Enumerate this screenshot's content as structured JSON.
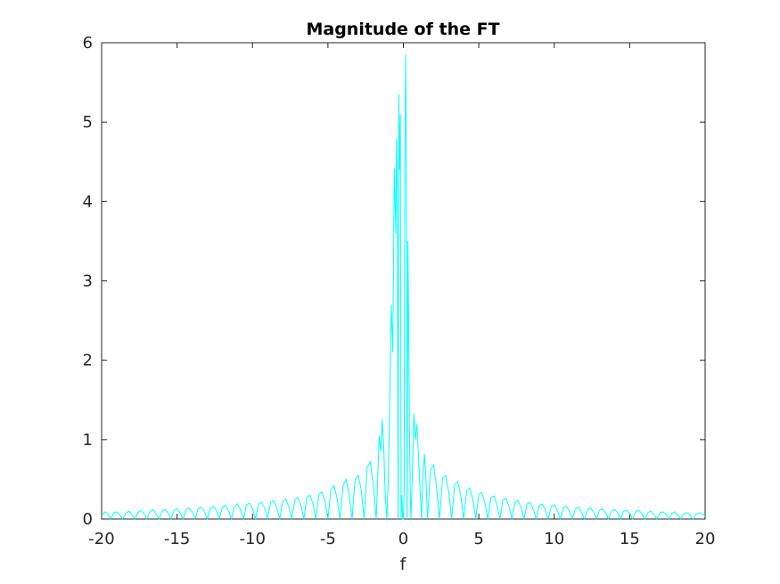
{
  "chart_data": {
    "type": "line",
    "title": "Magnitude of the FT",
    "xlabel": "f",
    "ylabel": "",
    "xlim": [
      -20,
      20
    ],
    "ylim": [
      0,
      6
    ],
    "grid": false,
    "legend": "none",
    "x_ticks": [
      "-20",
      "-15",
      "-10",
      "-5",
      "0",
      "5",
      "10",
      "15",
      "20"
    ],
    "y_ticks": [
      "0",
      "1",
      "2",
      "3",
      "4",
      "5",
      "6"
    ],
    "series": [
      {
        "color": "#00ffff",
        "x": [
          -20.0,
          -19.8,
          -19.6,
          -19.4,
          -19.2,
          -19.0,
          -18.8,
          -18.6,
          -18.4,
          -18.2,
          -18.0,
          -17.8,
          -17.6,
          -17.4,
          -17.2,
          -17.0,
          -16.8,
          -16.6,
          -16.4,
          -16.2,
          -16.0,
          -15.8,
          -15.6,
          -15.4,
          -15.2,
          -15.0,
          -14.8,
          -14.6,
          -14.4,
          -14.2,
          -14.0,
          -13.8,
          -13.6,
          -13.4,
          -13.2,
          -13.0,
          -12.8,
          -12.6,
          -12.4,
          -12.2,
          -12.0,
          -11.8,
          -11.6,
          -11.4,
          -11.2,
          -11.0,
          -10.8,
          -10.6,
          -10.4,
          -10.2,
          -10.0,
          -9.8,
          -9.6,
          -9.4,
          -9.2,
          -9.0,
          -8.8,
          -8.6,
          -8.4,
          -8.2,
          -8.0,
          -7.8,
          -7.6,
          -7.4,
          -7.2,
          -7.0,
          -6.8,
          -6.6,
          -6.4,
          -6.2,
          -6.0,
          -5.8,
          -5.6,
          -5.4,
          -5.2,
          -5.0,
          -4.8,
          -4.6,
          -4.4,
          -4.2,
          -4.0,
          -3.8,
          -3.6,
          -3.4,
          -3.2,
          -3.0,
          -2.8,
          -2.6,
          -2.4,
          -2.2,
          -2.0,
          -1.8,
          -1.6,
          -1.5,
          -1.4,
          -1.3,
          -1.2,
          -1.1,
          -1.0,
          -0.9,
          -0.8,
          -0.7,
          -0.6,
          -0.5,
          -0.45,
          -0.4,
          -0.35,
          -0.3,
          -0.25,
          -0.2,
          -0.15,
          -0.1,
          -0.05,
          0.0,
          0.05,
          0.1,
          0.15,
          0.2,
          0.25,
          0.3,
          0.35,
          0.4,
          0.45,
          0.5,
          0.55,
          0.6,
          0.7,
          0.8,
          0.9,
          1.0,
          1.1,
          1.2,
          1.3,
          1.4,
          1.5,
          1.6,
          1.8,
          2.0,
          2.2,
          2.4,
          2.6,
          2.8,
          3.0,
          3.2,
          3.4,
          3.6,
          3.8,
          4.0,
          4.2,
          4.4,
          4.6,
          4.8,
          5.0,
          5.2,
          5.4,
          5.6,
          5.8,
          6.0,
          6.2,
          6.4,
          6.6,
          6.8,
          7.0,
          7.2,
          7.4,
          7.6,
          7.8,
          8.0,
          8.2,
          8.4,
          8.6,
          8.8,
          9.0,
          9.2,
          9.4,
          9.6,
          9.8,
          10.0,
          10.2,
          10.4,
          10.6,
          10.8,
          11.0,
          11.2,
          11.4,
          11.6,
          11.8,
          12.0,
          12.2,
          12.4,
          12.6,
          12.8,
          13.0,
          13.2,
          13.4,
          13.6,
          13.8,
          14.0,
          14.2,
          14.4,
          14.6,
          14.8,
          15.0,
          15.2,
          15.4,
          15.6,
          15.8,
          16.0,
          16.2,
          16.4,
          16.6,
          16.8,
          17.0,
          17.2,
          17.4,
          17.6,
          17.8,
          18.0,
          18.2,
          18.4,
          18.6,
          18.8,
          19.0,
          19.2,
          19.4,
          19.6,
          19.8,
          20.0
        ],
        "y": [
          0.04,
          0.09,
          0.07,
          0.0,
          0.08,
          0.09,
          0.05,
          0.0,
          0.07,
          0.1,
          0.06,
          0.0,
          0.08,
          0.11,
          0.07,
          0.0,
          0.09,
          0.12,
          0.07,
          0.0,
          0.1,
          0.12,
          0.08,
          0.0,
          0.11,
          0.13,
          0.08,
          0.0,
          0.12,
          0.14,
          0.09,
          0.0,
          0.13,
          0.15,
          0.1,
          0.0,
          0.14,
          0.16,
          0.11,
          0.0,
          0.15,
          0.17,
          0.11,
          0.0,
          0.16,
          0.19,
          0.12,
          0.0,
          0.18,
          0.2,
          0.13,
          0.0,
          0.19,
          0.21,
          0.14,
          0.0,
          0.21,
          0.23,
          0.15,
          0.0,
          0.22,
          0.25,
          0.16,
          0.0,
          0.24,
          0.27,
          0.18,
          0.0,
          0.27,
          0.3,
          0.2,
          0.0,
          0.31,
          0.34,
          0.22,
          0.0,
          0.37,
          0.42,
          0.27,
          0.0,
          0.42,
          0.5,
          0.32,
          0.0,
          0.5,
          0.55,
          0.38,
          0.0,
          0.65,
          0.72,
          0.45,
          0.0,
          1.05,
          0.85,
          1.25,
          0.9,
          0.3,
          0.0,
          0.5,
          1.5,
          2.7,
          2.1,
          4.42,
          3.6,
          4.8,
          4.2,
          0.0,
          5.35,
          4.4,
          5.1,
          0.0,
          0.3,
          0.0,
          0.0,
          0.4,
          4.5,
          5.85,
          4.3,
          0.0,
          3.5,
          2.5,
          1.2,
          0.4,
          0.0,
          0.3,
          0.6,
          1.33,
          1.0,
          1.2,
          0.8,
          0.4,
          0.0,
          0.55,
          0.82,
          0.5,
          0.0,
          0.62,
          0.68,
          0.4,
          0.0,
          0.52,
          0.55,
          0.35,
          0.0,
          0.43,
          0.47,
          0.3,
          0.0,
          0.36,
          0.39,
          0.25,
          0.0,
          0.31,
          0.33,
          0.21,
          0.0,
          0.27,
          0.29,
          0.18,
          0.0,
          0.24,
          0.26,
          0.16,
          0.0,
          0.21,
          0.23,
          0.15,
          0.0,
          0.19,
          0.21,
          0.13,
          0.0,
          0.17,
          0.19,
          0.12,
          0.0,
          0.16,
          0.18,
          0.11,
          0.0,
          0.14,
          0.16,
          0.1,
          0.0,
          0.13,
          0.15,
          0.09,
          0.0,
          0.12,
          0.14,
          0.09,
          0.0,
          0.11,
          0.13,
          0.08,
          0.0,
          0.1,
          0.12,
          0.08,
          0.0,
          0.1,
          0.11,
          0.07,
          0.0,
          0.09,
          0.11,
          0.07,
          0.0,
          0.08,
          0.1,
          0.06,
          0.0,
          0.08,
          0.09,
          0.06,
          0.0,
          0.07,
          0.09,
          0.05,
          0.0,
          0.07,
          0.08,
          0.05,
          0.0,
          0.06,
          0.08,
          0.06,
          0.04
        ]
      }
    ]
  }
}
